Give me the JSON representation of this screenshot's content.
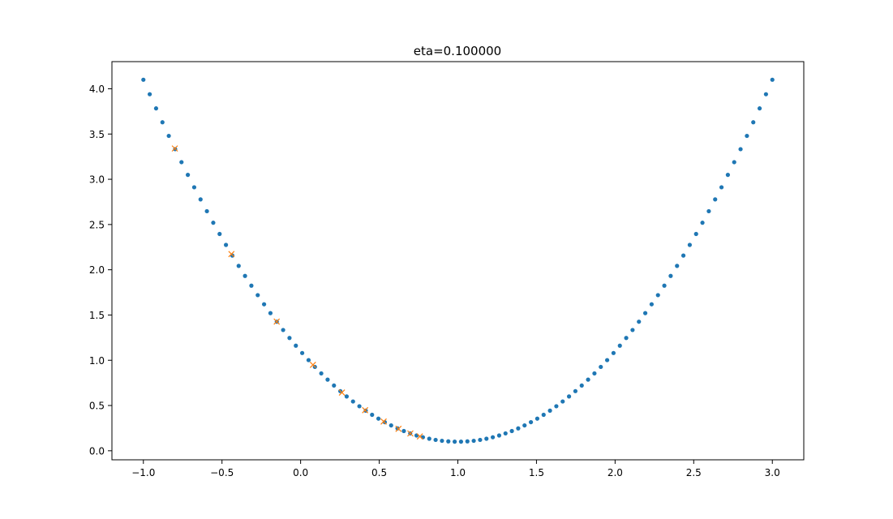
{
  "chart_data": {
    "type": "scatter",
    "title": "eta=0.100000",
    "xlabel": "",
    "ylabel": "",
    "xlim": [
      -1.2,
      3.2
    ],
    "ylim": [
      -0.1,
      4.3
    ],
    "x_ticks": [
      -1.0,
      -0.5,
      0.0,
      0.5,
      1.0,
      1.5,
      2.0,
      2.5,
      3.0
    ],
    "x_tick_labels": [
      "−1.0",
      "−0.5",
      "0.0",
      "0.5",
      "1.0",
      "1.5",
      "2.0",
      "2.5",
      "3.0"
    ],
    "y_ticks": [
      0.0,
      0.5,
      1.0,
      1.5,
      2.0,
      2.5,
      3.0,
      3.5,
      4.0
    ],
    "y_tick_labels": [
      "0.0",
      "0.5",
      "1.0",
      "1.5",
      "2.0",
      "2.5",
      "3.0",
      "3.5",
      "4.0"
    ],
    "grid": false,
    "series": [
      {
        "marker": "dot",
        "color": "#1f77b4",
        "x_start": -1.0,
        "x_end": 3.0,
        "count": 100,
        "y_formula": "(x-1)^2 + 0.1"
      },
      {
        "marker": "x",
        "color": "#ff7f0e",
        "x": [
          -0.8,
          -0.44,
          -0.152,
          0.0784,
          0.26272,
          0.410176,
          0.528141,
          0.622513,
          0.69801,
          0.758408
        ],
        "y": [
          3.34,
          2.1736,
          1.4271,
          0.94935,
          0.64358,
          0.44789,
          0.32265,
          0.2425,
          0.1912,
          0.15836
        ]
      }
    ]
  }
}
